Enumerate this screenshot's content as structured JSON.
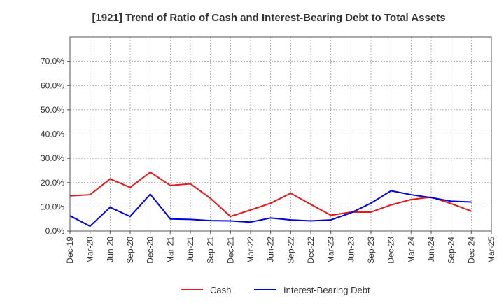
{
  "chart_data": {
    "type": "line",
    "title": "[1921]  Trend of Ratio of Cash and Interest-Bearing Debt to Total Assets",
    "xlabel": "",
    "ylabel": "",
    "ylim": [
      0,
      80
    ],
    "y_ticks": [
      0,
      10,
      20,
      30,
      40,
      50,
      60,
      70
    ],
    "y_tick_labels": [
      "0.0%",
      "10.0%",
      "20.0%",
      "30.0%",
      "40.0%",
      "50.0%",
      "60.0%",
      "70.0%"
    ],
    "grid": true,
    "legend_position": "bottom",
    "categories": [
      "Dec-19",
      "Mar-20",
      "Jun-20",
      "Sep-20",
      "Dec-20",
      "Mar-21",
      "Jun-21",
      "Sep-21",
      "Dec-21",
      "Mar-22",
      "Jun-22",
      "Sep-22",
      "Dec-22",
      "Mar-23",
      "Jun-23",
      "Sep-23",
      "Dec-23",
      "Mar-24",
      "Jun-24",
      "Sep-24",
      "Dec-24",
      "Mar-25"
    ],
    "series": [
      {
        "name": "Cash",
        "color": "#e31a1c",
        "values": [
          14.5,
          15.0,
          21.5,
          18.0,
          24.3,
          18.8,
          19.5,
          13.5,
          6.0,
          8.7,
          11.5,
          15.6,
          11.0,
          6.5,
          7.8,
          7.8,
          10.8,
          13.0,
          14.0,
          11.3,
          8.2,
          null
        ]
      },
      {
        "name": "Interest-Bearing Debt",
        "color": "#0000dd",
        "values": [
          6.3,
          2.0,
          9.8,
          6.0,
          15.2,
          5.0,
          4.8,
          4.3,
          4.2,
          3.7,
          5.4,
          4.6,
          4.2,
          4.6,
          7.5,
          11.5,
          16.6,
          15.0,
          13.8,
          12.3,
          12.0,
          null
        ]
      }
    ]
  }
}
